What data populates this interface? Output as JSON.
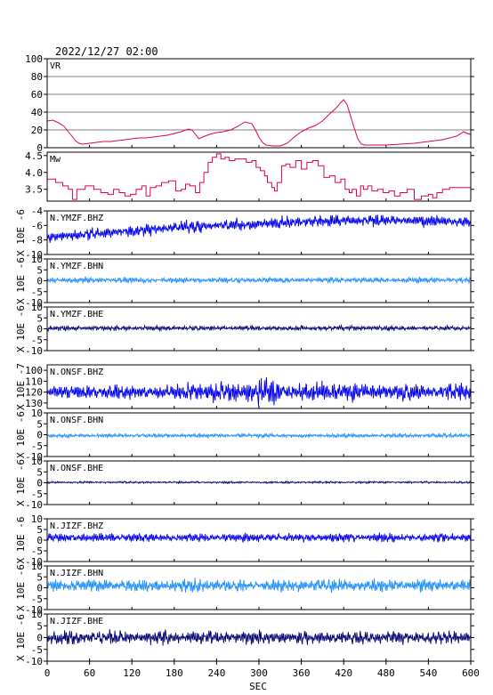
{
  "chart_data": {
    "type": "line",
    "title": "2022/12/27 02:00",
    "xlabel": "SEC",
    "xlim": [
      0,
      600
    ],
    "xticks": [
      0,
      60,
      120,
      180,
      240,
      300,
      360,
      420,
      480,
      540,
      600
    ],
    "panels": [
      {
        "label": "VR",
        "ylabel": "",
        "ylim": [
          0,
          100
        ],
        "yticks": [
          0,
          20,
          40,
          60,
          80,
          100
        ],
        "grid": true,
        "color": "#e0004a",
        "style": "line",
        "x": [
          0,
          8,
          16,
          24,
          30,
          35,
          40,
          45,
          50,
          60,
          70,
          80,
          90,
          100,
          110,
          120,
          130,
          140,
          150,
          160,
          170,
          180,
          190,
          200,
          205,
          210,
          215,
          220,
          230,
          240,
          250,
          260,
          270,
          280,
          290,
          295,
          300,
          305,
          310,
          320,
          330,
          340,
          350,
          360,
          370,
          380,
          390,
          400,
          410,
          415,
          420,
          425,
          430,
          435,
          440,
          445,
          450,
          460,
          480,
          500,
          520,
          540,
          560,
          580,
          590,
          595,
          600
        ],
        "y": [
          30,
          31,
          28,
          24,
          18,
          13,
          8,
          5,
          4,
          5,
          6,
          7,
          7,
          8,
          9,
          10,
          11,
          11,
          12,
          13,
          14,
          16,
          18,
          21,
          20,
          15,
          10,
          12,
          15,
          17,
          18,
          20,
          24,
          29,
          27,
          20,
          12,
          6,
          3,
          2,
          2,
          5,
          12,
          18,
          22,
          25,
          30,
          38,
          45,
          50,
          54,
          48,
          35,
          22,
          10,
          4,
          3,
          3,
          3,
          4,
          5,
          7,
          9,
          13,
          18,
          16,
          15
        ]
      },
      {
        "label": "Mw",
        "ylabel": "",
        "ylim": [
          3.15,
          4.6
        ],
        "yticks": [
          3.5,
          4.0,
          4.5
        ],
        "tick_labels": [
          "3.5",
          "4.0",
          "4.5"
        ],
        "grid": false,
        "color": "#e0004a",
        "style": "step",
        "x": [
          0,
          12,
          22,
          30,
          36,
          42,
          54,
          66,
          76,
          86,
          94,
          102,
          110,
          118,
          126,
          134,
          140,
          146,
          154,
          162,
          172,
          182,
          190,
          196,
          202,
          210,
          216,
          222,
          228,
          234,
          240,
          246,
          252,
          258,
          266,
          274,
          282,
          290,
          296,
          302,
          308,
          312,
          318,
          322,
          326,
          332,
          338,
          344,
          352,
          360,
          368,
          376,
          384,
          392,
          400,
          408,
          416,
          422,
          428,
          432,
          438,
          444,
          448,
          454,
          460,
          468,
          476,
          484,
          492,
          500,
          510,
          520,
          530,
          540,
          546,
          552,
          560,
          570,
          580,
          590,
          600
        ],
        "y": [
          3.8,
          3.7,
          3.6,
          3.5,
          3.2,
          3.5,
          3.6,
          3.5,
          3.4,
          3.35,
          3.5,
          3.4,
          3.3,
          3.35,
          3.5,
          3.6,
          3.3,
          3.55,
          3.6,
          3.7,
          3.75,
          3.45,
          3.5,
          3.65,
          3.6,
          3.4,
          3.7,
          4.0,
          4.3,
          4.45,
          4.55,
          4.4,
          4.45,
          4.35,
          4.4,
          4.4,
          4.3,
          4.35,
          4.15,
          4.05,
          3.9,
          3.7,
          3.55,
          3.45,
          3.7,
          4.2,
          4.25,
          4.15,
          4.35,
          4.1,
          4.3,
          4.35,
          4.2,
          3.85,
          3.9,
          3.7,
          3.8,
          3.5,
          3.4,
          3.5,
          3.3,
          3.6,
          3.5,
          3.6,
          3.45,
          3.5,
          3.4,
          3.45,
          3.3,
          3.4,
          3.5,
          3.2,
          3.3,
          3.35,
          3.25,
          3.4,
          3.5,
          3.55,
          3.55,
          3.55,
          3.55
        ]
      },
      {
        "label": "N.YMZF.BHZ",
        "ylabel": "X 10E -6",
        "ylim": [
          -10,
          -4
        ],
        "yticks": [
          -10,
          -8,
          -6,
          -4
        ],
        "tick_labels": [
          "-10",
          "-8",
          "-6",
          "-4"
        ],
        "color": "#0000ee",
        "style": "wave",
        "trend": [
          [
            0,
            -7.6
          ],
          [
            100,
            -6.9
          ],
          [
            200,
            -6.2
          ],
          [
            300,
            -5.8
          ],
          [
            400,
            -5.4
          ],
          [
            500,
            -5.3
          ],
          [
            600,
            -5.5
          ]
        ],
        "amp_env": [
          [
            0,
            0.8
          ],
          [
            200,
            0.9
          ],
          [
            400,
            0.9
          ],
          [
            600,
            0.8
          ]
        ],
        "seed": 11
      },
      {
        "label": "N.YMZF.BHN",
        "ylabel": "X 10E -6",
        "ylim": [
          -10,
          10
        ],
        "yticks": [
          -10,
          -5,
          0,
          5,
          10
        ],
        "tick_labels": [
          "-10",
          "-5",
          "0",
          "5",
          "10"
        ],
        "color": "#1e90ff",
        "style": "wave",
        "trend": [
          [
            0,
            0.3
          ],
          [
            600,
            0.3
          ]
        ],
        "amp_env": [
          [
            0,
            1.3
          ],
          [
            600,
            1.3
          ]
        ],
        "seed": 23
      },
      {
        "label": "N.YMZF.BHE",
        "ylabel": "X 10E -6",
        "ylim": [
          -10,
          10
        ],
        "yticks": [
          -10,
          -5,
          0,
          5,
          10
        ],
        "tick_labels": [
          "-10",
          "-5",
          "0",
          "5",
          "10"
        ],
        "color": "#000070",
        "style": "wave",
        "trend": [
          [
            0,
            0.3
          ],
          [
            600,
            0.3
          ]
        ],
        "amp_env": [
          [
            0,
            1.2
          ],
          [
            600,
            1.2
          ]
        ],
        "seed": 37
      },
      {
        "label": "N.ONSF.BHZ",
        "ylabel": "X 10E -7",
        "ylim": [
          -135,
          -95
        ],
        "yticks": [
          -130,
          -120,
          -110,
          -100
        ],
        "tick_labels": [
          "130",
          "120",
          "110",
          "100"
        ],
        "color": "#0000ee",
        "style": "wave",
        "trend": [
          [
            0,
            -120
          ],
          [
            600,
            -120
          ]
        ],
        "amp_env": [
          [
            0,
            7
          ],
          [
            190,
            7
          ],
          [
            205,
            15
          ],
          [
            225,
            9
          ],
          [
            320,
            14
          ],
          [
            340,
            10
          ],
          [
            600,
            8
          ]
        ],
        "seed": 41
      },
      {
        "label": "N.ONSF.BHN",
        "ylabel": "X 10E -6",
        "ylim": [
          -10,
          10
        ],
        "yticks": [
          -10,
          -5,
          0,
          5,
          10
        ],
        "tick_labels": [
          "-10",
          "-5",
          "0",
          "5",
          "10"
        ],
        "color": "#1e90ff",
        "style": "wave",
        "trend": [
          [
            0,
            -0.4
          ],
          [
            600,
            -0.4
          ]
        ],
        "amp_env": [
          [
            0,
            1.0
          ],
          [
            600,
            1.0
          ]
        ],
        "seed": 53
      },
      {
        "label": "N.ONSF.BHE",
        "ylabel": "X 10E -6",
        "ylim": [
          -10,
          10
        ],
        "yticks": [
          -10,
          -5,
          0,
          5,
          10
        ],
        "tick_labels": [
          "-10",
          "-5",
          "0",
          "5",
          "10"
        ],
        "color": "#000070",
        "style": "wave",
        "trend": [
          [
            0,
            0.2
          ],
          [
            600,
            0.2
          ]
        ],
        "amp_env": [
          [
            0,
            0.5
          ],
          [
            600,
            0.5
          ]
        ],
        "seed": 67
      },
      {
        "label": "N.JIZF.BHZ",
        "ylabel": "X 10E -6",
        "ylim": [
          -10,
          10
        ],
        "yticks": [
          -10,
          -5,
          0,
          5,
          10
        ],
        "tick_labels": [
          "-10",
          "-5",
          "0",
          "5",
          "10"
        ],
        "color": "#0000ee",
        "style": "wave",
        "trend": [
          [
            0,
            1.2
          ],
          [
            600,
            1.2
          ]
        ],
        "amp_env": [
          [
            0,
            2.2
          ],
          [
            600,
            2.2
          ]
        ],
        "seed": 71
      },
      {
        "label": "N.JIZF.BHN",
        "ylabel": "X 10E -6",
        "ylim": [
          -10,
          10
        ],
        "yticks": [
          -10,
          -5,
          0,
          5,
          10
        ],
        "tick_labels": [
          "-10",
          "-5",
          "0",
          "5",
          "10"
        ],
        "color": "#1e90ff",
        "style": "wave",
        "trend": [
          [
            0,
            1.0
          ],
          [
            600,
            1.0
          ]
        ],
        "amp_env": [
          [
            0,
            3.0
          ],
          [
            600,
            3.0
          ]
        ],
        "seed": 83
      },
      {
        "label": "N.JIZF.BHE",
        "ylabel": "X 10E -6",
        "ylim": [
          -10,
          10
        ],
        "yticks": [
          -10,
          -5,
          0,
          5,
          10
        ],
        "tick_labels": [
          "-10",
          "-5",
          "0",
          "5",
          "10"
        ],
        "color": "#000070",
        "style": "wave",
        "trend": [
          [
            0,
            0.0
          ],
          [
            600,
            0.0
          ]
        ],
        "amp_env": [
          [
            0,
            3.0
          ],
          [
            600,
            3.0
          ]
        ],
        "seed": 97
      }
    ]
  }
}
